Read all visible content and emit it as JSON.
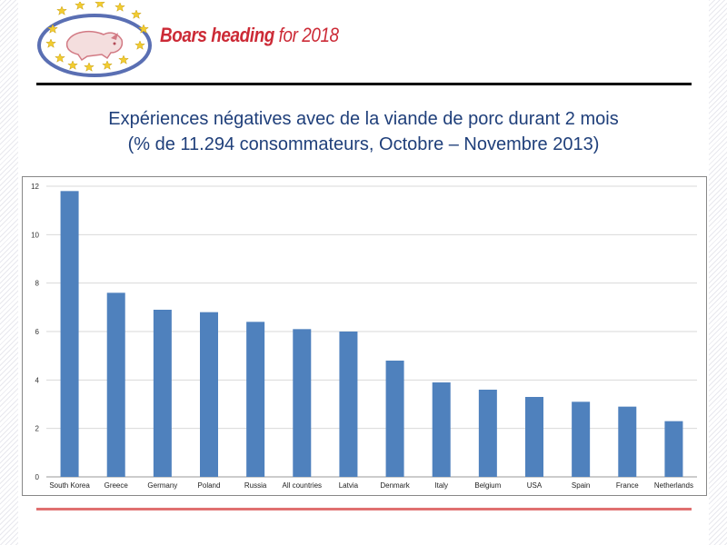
{
  "header": {
    "brand_bold": "Boars heading",
    "brand_regular": " for 2018"
  },
  "colors": {
    "brand_red": "#cc2a36",
    "title_blue": "#1f3f7a",
    "bar_blue": "#4f81bd",
    "bottom_rule": "#e07070",
    "logo_ring": "#5a6fb3",
    "logo_star": "#f2cc2e"
  },
  "title": {
    "line1": "Expériences négatives avec de la viande de porc durant 2 mois",
    "line2": "(% de 11.294 consommateurs, Octobre – Novembre 2013)"
  },
  "chart_data": {
    "type": "bar",
    "categories": [
      "South Korea",
      "Greece",
      "Germany",
      "Poland",
      "Russia",
      "All countries",
      "Latvia",
      "Denmark",
      "Italy",
      "Belgium",
      "USA",
      "Spain",
      "France",
      "Netherlands"
    ],
    "values": [
      11.8,
      7.6,
      6.9,
      6.8,
      6.4,
      6.1,
      6.0,
      4.8,
      3.9,
      3.6,
      3.3,
      3.1,
      2.9,
      2.3
    ],
    "yticks": [
      0,
      2,
      4,
      6,
      8,
      10,
      12
    ],
    "ylim": [
      0,
      12
    ],
    "grid": true,
    "legend": "none"
  }
}
